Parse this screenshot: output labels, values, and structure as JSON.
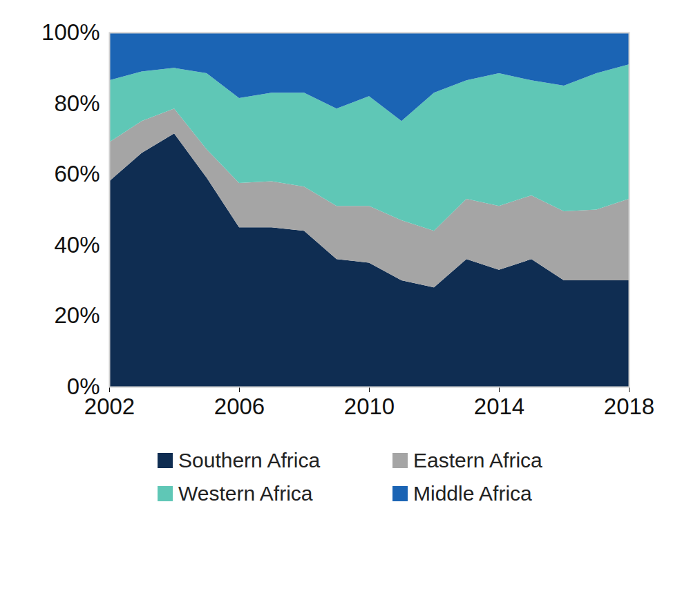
{
  "chart_data": {
    "type": "area",
    "stacked": true,
    "x": [
      2002,
      2003,
      2004,
      2005,
      2006,
      2007,
      2008,
      2009,
      2010,
      2011,
      2012,
      2013,
      2014,
      2015,
      2016,
      2017,
      2018
    ],
    "xlim": [
      2002,
      2018
    ],
    "xticks": [
      2002,
      2006,
      2010,
      2014,
      2018
    ],
    "ylim": [
      0,
      100
    ],
    "yticks": [
      {
        "value": 0,
        "label": "0%"
      },
      {
        "value": 20,
        "label": "20%"
      },
      {
        "value": 40,
        "label": "40%"
      },
      {
        "value": 60,
        "label": "60%"
      },
      {
        "value": 80,
        "label": "80%"
      },
      {
        "value": 100,
        "label": "100%"
      }
    ],
    "legend": "bottom",
    "series": [
      {
        "name": "Southern Africa",
        "color": "#0f2d52",
        "values": [
          58,
          66,
          71.5,
          59,
          45,
          45,
          44,
          36,
          35,
          30,
          28,
          36,
          33,
          36,
          30,
          30,
          30
        ]
      },
      {
        "name": "Eastern Africa",
        "color": "#a5a5a5",
        "values": [
          11,
          9,
          7,
          8,
          12.5,
          13,
          12.5,
          15,
          16,
          17,
          16,
          17,
          18,
          18,
          19.5,
          20,
          23
        ]
      },
      {
        "name": "Western Africa",
        "color": "#5fc7b6",
        "values": [
          17.5,
          14,
          11.5,
          21.5,
          24,
          25,
          26.5,
          27.5,
          31,
          28,
          39,
          33.5,
          37.5,
          32.5,
          35.5,
          38.5,
          38
        ]
      },
      {
        "name": "Middle Africa",
        "color": "#1b64b4",
        "values": [
          13.5,
          11,
          10,
          11.5,
          18.5,
          17,
          17,
          21.5,
          18,
          25,
          17,
          13.5,
          11.5,
          13.5,
          15,
          11.5,
          9
        ]
      }
    ]
  }
}
